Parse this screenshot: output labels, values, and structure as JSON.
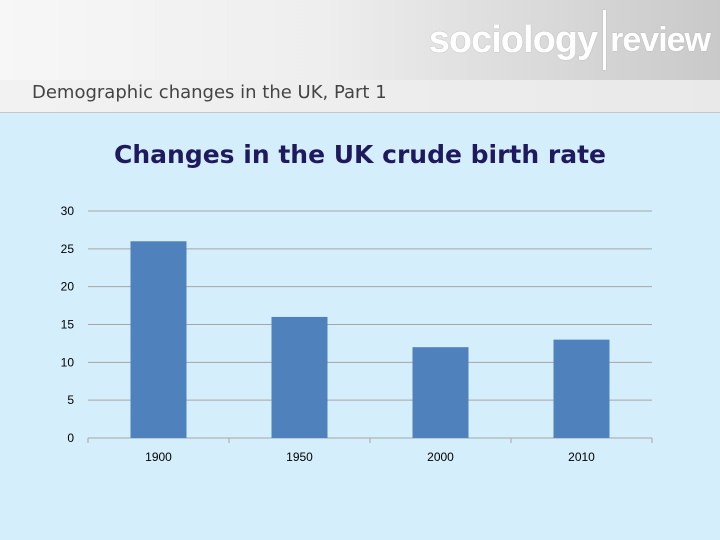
{
  "header": {
    "logo_part1": "sociology",
    "logo_part2": "review",
    "subtitle": "Demographic changes in the UK, Part 1"
  },
  "slide": {
    "title": "Changes in the UK crude birth rate"
  },
  "colors": {
    "bar": "#4f81bd",
    "title": "#1f1a5e",
    "background": "#d4eefb"
  },
  "chart_data": {
    "type": "bar",
    "categories": [
      "1900",
      "1950",
      "2000",
      "2010"
    ],
    "values": [
      26,
      16,
      12,
      13
    ],
    "ylim": [
      0,
      30
    ],
    "yticks": [
      0,
      5,
      10,
      15,
      20,
      25,
      30
    ],
    "grid": true,
    "legend": "none"
  }
}
